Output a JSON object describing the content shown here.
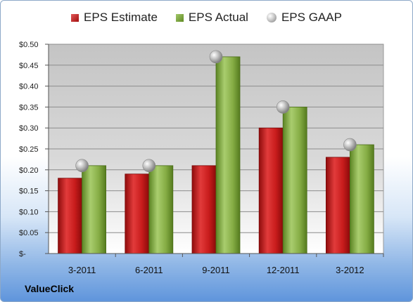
{
  "chart_data": {
    "type": "bar",
    "categories": [
      "3-2011",
      "6-2011",
      "9-2011",
      "12-2011",
      "3-2012"
    ],
    "series": [
      {
        "name": "EPS Estimate",
        "values": [
          0.18,
          0.19,
          0.21,
          0.3,
          0.23
        ],
        "kind": "bar",
        "color": "#c0181b"
      },
      {
        "name": "EPS Actual",
        "values": [
          0.21,
          0.21,
          0.47,
          0.35,
          0.26
        ],
        "kind": "bar",
        "color": "#7da33a"
      },
      {
        "name": "EPS GAAP",
        "values": [
          0.21,
          0.21,
          0.47,
          0.35,
          0.26
        ],
        "kind": "marker",
        "color": "#b0b0b0"
      }
    ],
    "ylim": [
      0,
      0.5
    ],
    "yticks": [
      "$-",
      "$0.05",
      "$0.10",
      "$0.15",
      "$0.20",
      "$0.25",
      "$0.30",
      "$0.35",
      "$0.40",
      "$0.45",
      "$0.50"
    ],
    "grid": true,
    "legend": "top"
  },
  "company": "ValueClick"
}
